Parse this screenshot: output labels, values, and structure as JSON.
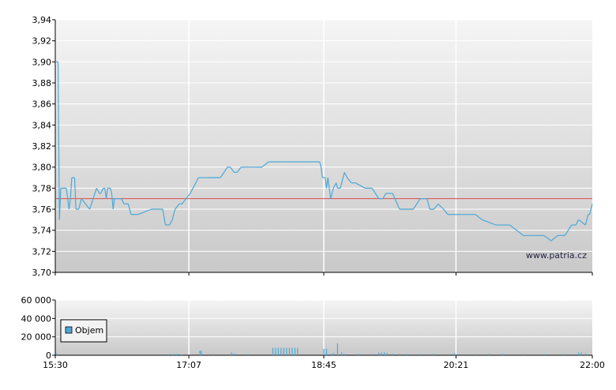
{
  "chart_data": [
    {
      "type": "line",
      "title": "",
      "xlabel": "",
      "ylabel": "",
      "ylim": [
        3.7,
        3.94
      ],
      "y_ticks": [
        "3,70",
        "3,72",
        "3,74",
        "3,76",
        "3,78",
        "3,80",
        "3,82",
        "3,84",
        "3,86",
        "3,88",
        "3,90",
        "3,92",
        "3,94"
      ],
      "x_ticks": [
        "15:30",
        "17:07",
        "18:45",
        "20:21",
        "22:00"
      ],
      "grid": true,
      "reference_line": {
        "value": 3.77,
        "color": "#d94a4a"
      },
      "line_color": "#4aa8d8",
      "watermark": "www.patria.cz",
      "series": [
        {
          "x": [
            "15:30",
            "15:32",
            "15:33",
            "15:34",
            "15:35",
            "15:36",
            "15:38",
            "15:40",
            "15:41",
            "15:42",
            "15:44",
            "15:45",
            "15:46",
            "15:47",
            "15:49",
            "15:52",
            "15:55",
            "16:00",
            "16:02",
            "16:03",
            "16:05",
            "16:06",
            "16:07",
            "16:08",
            "16:09",
            "16:10",
            "16:11",
            "16:12",
            "16:13",
            "16:15",
            "16:18",
            "16:20",
            "16:23",
            "16:25",
            "16:30",
            "16:40",
            "16:48",
            "16:50",
            "16:53",
            "16:55",
            "16:57",
            "17:00",
            "17:02",
            "17:05",
            "17:08",
            "17:10",
            "17:12",
            "17:14",
            "17:15",
            "17:20",
            "17:30",
            "17:35",
            "17:37",
            "17:40",
            "17:42",
            "17:45",
            "17:55",
            "18:00",
            "18:05",
            "18:15",
            "18:20",
            "18:30",
            "18:42",
            "18:43",
            "18:44",
            "18:46",
            "18:47",
            "18:48",
            "18:50",
            "18:52",
            "18:54",
            "18:55",
            "18:57",
            "19:00",
            "19:02",
            "19:05",
            "19:08",
            "19:15",
            "19:20",
            "19:25",
            "19:28",
            "19:30",
            "19:35",
            "19:40",
            "19:50",
            "19:55",
            "20:00",
            "20:02",
            "20:05",
            "20:08",
            "20:12",
            "20:15",
            "20:20",
            "20:25",
            "20:35",
            "20:40",
            "20:50",
            "20:55",
            "21:00",
            "21:10",
            "21:20",
            "21:25",
            "21:30",
            "21:35",
            "21:40",
            "21:45",
            "21:48",
            "21:50",
            "21:55",
            "21:57",
            "21:58",
            "22:00"
          ],
          "y": [
            3.9,
            3.9,
            3.75,
            3.78,
            3.78,
            3.78,
            3.78,
            3.76,
            3.77,
            3.79,
            3.79,
            3.76,
            3.76,
            3.76,
            3.77,
            3.765,
            3.76,
            3.78,
            3.775,
            3.775,
            3.78,
            3.78,
            3.77,
            3.78,
            3.78,
            3.78,
            3.775,
            3.76,
            3.77,
            3.77,
            3.77,
            3.765,
            3.765,
            3.755,
            3.755,
            3.76,
            3.76,
            3.745,
            3.745,
            3.75,
            3.76,
            3.765,
            3.765,
            3.77,
            3.775,
            3.78,
            3.785,
            3.79,
            3.79,
            3.79,
            3.79,
            3.8,
            3.8,
            3.795,
            3.795,
            3.8,
            3.8,
            3.8,
            3.805,
            3.805,
            3.805,
            3.805,
            3.805,
            3.8,
            3.79,
            3.79,
            3.78,
            3.79,
            3.77,
            3.78,
            3.785,
            3.78,
            3.78,
            3.795,
            3.79,
            3.785,
            3.785,
            3.78,
            3.78,
            3.77,
            3.77,
            3.775,
            3.775,
            3.76,
            3.76,
            3.77,
            3.77,
            3.76,
            3.76,
            3.765,
            3.76,
            3.755,
            3.755,
            3.755,
            3.755,
            3.75,
            3.745,
            3.745,
            3.745,
            3.735,
            3.735,
            3.735,
            3.73,
            3.735,
            3.735,
            3.745,
            3.745,
            3.75,
            3.745,
            3.755,
            3.755,
            3.765
          ]
        }
      ]
    },
    {
      "type": "bar",
      "title": "",
      "xlabel": "",
      "ylabel": "",
      "ylim": [
        0,
        60000
      ],
      "y_ticks": [
        "0",
        "20 000",
        "40 000",
        "60 000"
      ],
      "x_ticks": [
        "15:30",
        "17:07",
        "18:45",
        "20:21",
        "22:00"
      ],
      "grid": true,
      "bar_color": "#4aa8d8",
      "legend": {
        "label": "Objem",
        "position": "top-left"
      },
      "series": [
        {
          "name": "Objem",
          "x": [
            "15:31",
            "16:52",
            "16:55",
            "16:58",
            "17:02",
            "17:15",
            "17:16",
            "17:25",
            "17:38",
            "17:40",
            "17:50",
            "18:08",
            "18:10",
            "18:12",
            "18:14",
            "18:16",
            "18:18",
            "18:20",
            "18:22",
            "18:24",
            "18:26",
            "18:45",
            "18:47",
            "18:50",
            "18:52",
            "18:55",
            "18:58",
            "19:00",
            "19:10",
            "19:20",
            "19:25",
            "19:27",
            "19:29",
            "19:31",
            "19:35",
            "19:40",
            "19:45",
            "19:55",
            "20:05",
            "20:20",
            "20:35",
            "20:45",
            "20:55",
            "21:10",
            "21:25",
            "21:40",
            "21:50",
            "21:52",
            "21:55"
          ],
          "y": [
            2000,
            1200,
            1000,
            1500,
            1000,
            5000,
            5000,
            1500,
            3000,
            2000,
            1500,
            8000,
            8000,
            8000,
            8000,
            8000,
            8000,
            8000,
            8000,
            8000,
            8000,
            7000,
            7000,
            1500,
            2500,
            13000,
            3000,
            1500,
            1500,
            1500,
            3000,
            3000,
            3000,
            2500,
            1500,
            1500,
            1500,
            1500,
            1500,
            2500,
            1500,
            1500,
            1500,
            1500,
            1500,
            1500,
            3000,
            3000,
            2000
          ]
        }
      ]
    }
  ]
}
